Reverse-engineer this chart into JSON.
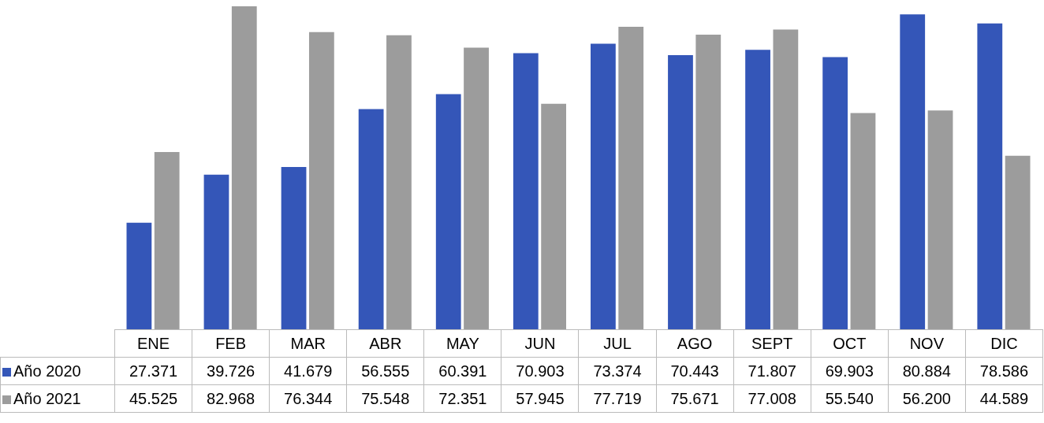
{
  "chart_data": {
    "type": "bar",
    "categories": [
      "ENE",
      "FEB",
      "MAR",
      "ABR",
      "MAY",
      "JUN",
      "JUL",
      "AGO",
      "SEPT",
      "OCT",
      "NOV",
      "DIC"
    ],
    "series": [
      {
        "name": "Año 2020",
        "color": "#3456b8",
        "values": [
          27.371,
          39.726,
          41.679,
          56.555,
          60.391,
          70.903,
          73.374,
          70.443,
          71.807,
          69.903,
          80.884,
          78.586
        ],
        "value_labels": [
          "27.371",
          "39.726",
          "41.679",
          "56.555",
          "60.391",
          "70.903",
          "73.374",
          "70.443",
          "71.807",
          "69.903",
          "80.884",
          "78.586"
        ]
      },
      {
        "name": "Año 2021",
        "color": "#9c9c9c",
        "values": [
          45.525,
          82.968,
          76.344,
          75.548,
          72.351,
          57.945,
          77.719,
          75.671,
          77.008,
          55.54,
          56.2,
          44.589
        ],
        "value_labels": [
          "45.525",
          "82.968",
          "76.344",
          "75.548",
          "72.351",
          "57.945",
          "77.719",
          "75.671",
          "77.008",
          "55.540",
          "56.200",
          "44.589"
        ]
      }
    ],
    "legend": "bottom left"
  }
}
